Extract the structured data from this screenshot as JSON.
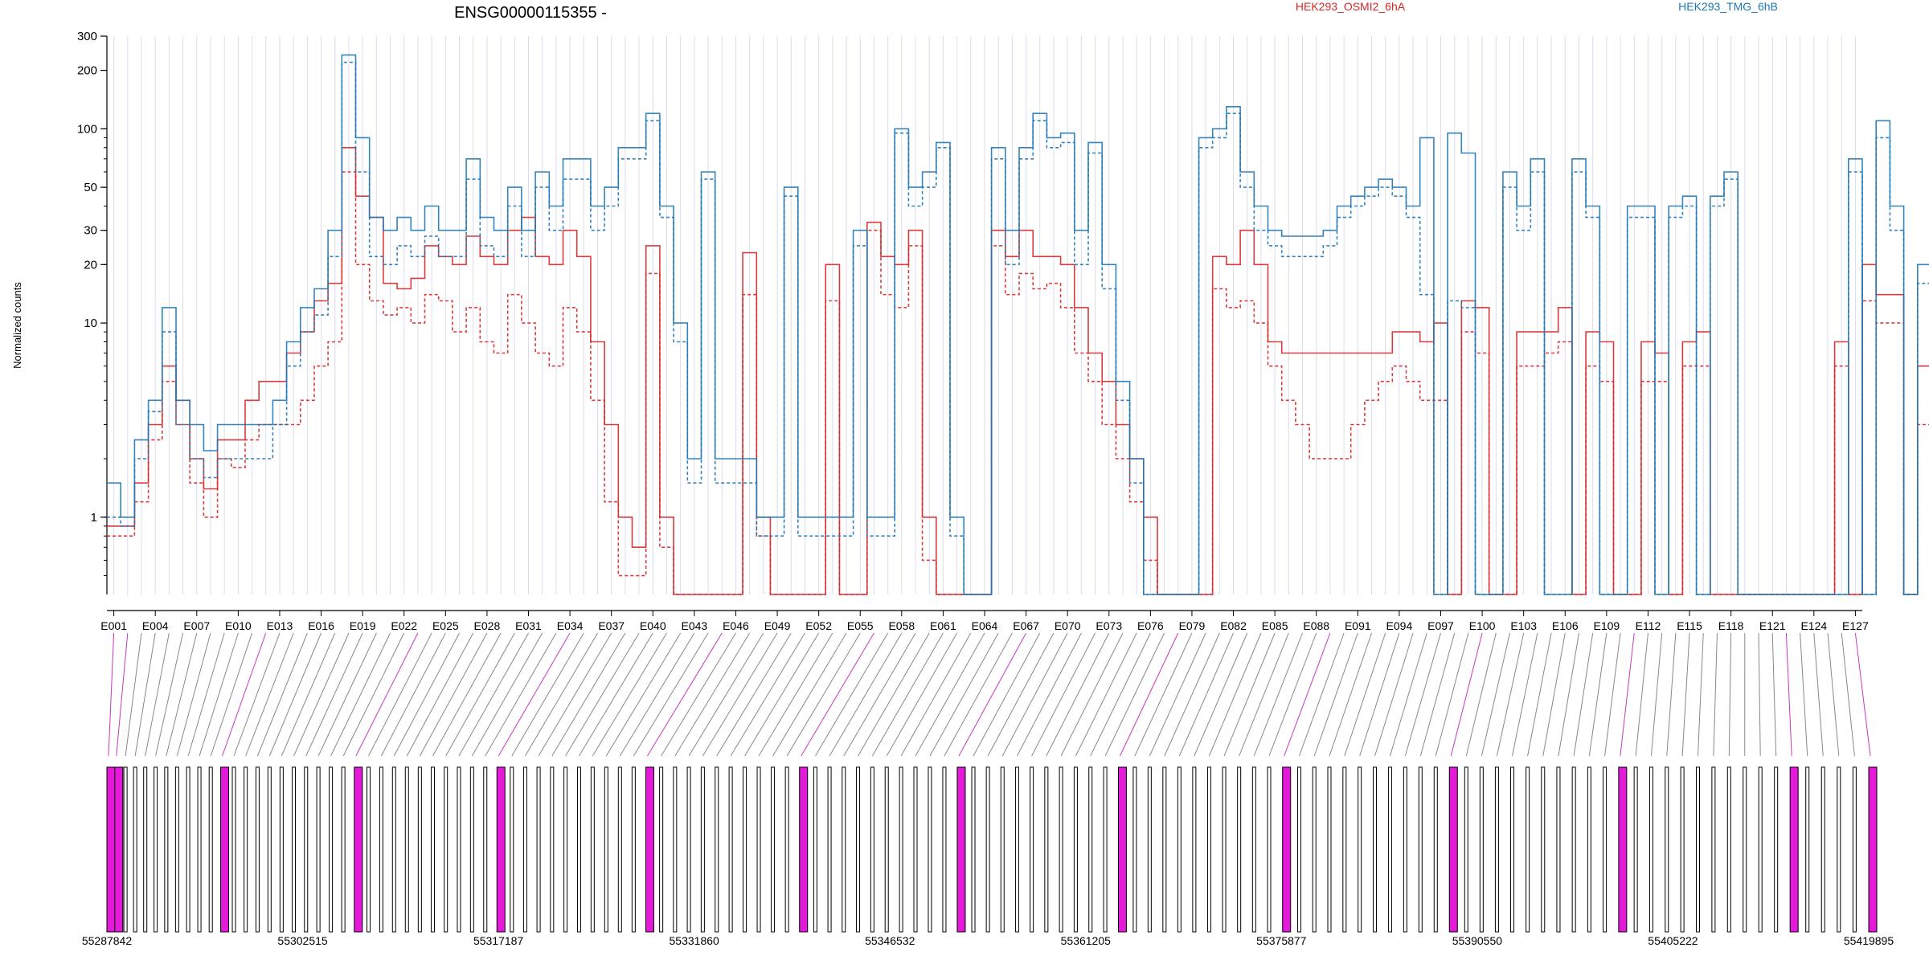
{
  "chart_data": {
    "type": "line",
    "title": "ENSG00000115355 -",
    "ylabel": "Normalized counts",
    "y_scale": "log",
    "ylim": [
      0.4,
      300
    ],
    "y_ticks": [
      1,
      10,
      20,
      30,
      50,
      100,
      200,
      300
    ],
    "legend_placement": "top",
    "exon_tick_labels": [
      "E001",
      "E004",
      "E007",
      "E010",
      "E013",
      "E016",
      "E019",
      "E022",
      "E025",
      "E028",
      "E031",
      "E034",
      "E037",
      "E040",
      "E043",
      "E046",
      "E049",
      "E052",
      "E055",
      "E058",
      "E061",
      "E064",
      "E067",
      "E070",
      "E073",
      "E076",
      "E079",
      "E082",
      "E085",
      "E088",
      "E091",
      "E094",
      "E097",
      "E100",
      "E103",
      "E106",
      "E109",
      "E112",
      "E115",
      "E118",
      "E121",
      "E124",
      "E127"
    ],
    "genomic_ticks": [
      "55287842",
      "55302515",
      "55317187",
      "55331860",
      "55346532",
      "55361205",
      "55375877",
      "55390550",
      "55405222",
      "55419895"
    ],
    "genomic_range": [
      55287842,
      55419895
    ],
    "exon_count": 127,
    "series": [
      {
        "name": "HEK293_OSMI2_6hA",
        "color": "#d62728",
        "values": [
          0.9,
          0.9,
          1.5,
          3,
          6,
          4,
          2,
          1.4,
          2.5,
          2.5,
          4,
          5,
          5,
          7,
          9,
          13,
          16,
          80,
          45,
          35,
          16,
          15,
          17,
          25,
          22,
          20,
          28,
          22,
          20,
          30,
          35,
          22,
          20,
          30,
          22,
          8,
          3,
          1,
          0.7,
          25,
          1,
          0.4,
          0.4,
          0.4,
          0.4,
          0.4,
          23,
          1,
          0.4,
          0.4,
          0.4,
          0.4,
          20,
          0.4,
          0.4,
          33,
          22,
          20,
          30,
          1,
          0.4,
          0.4,
          0.4,
          0.4,
          30,
          22,
          30,
          22,
          22,
          20,
          12,
          7,
          5,
          3,
          2,
          1,
          0.4,
          0.4,
          0.4,
          0.4,
          22,
          20,
          30,
          20,
          8,
          7,
          7,
          7,
          7,
          7,
          7,
          7,
          7,
          9,
          9,
          8,
          10,
          0.4,
          13,
          12,
          0.4,
          0.4,
          9,
          9,
          9,
          12,
          0.4,
          9,
          8,
          0.4,
          0.4,
          8,
          7,
          0.4,
          8,
          9,
          0.4,
          0.4,
          0.4,
          0.4,
          0.4,
          0.4,
          0.4,
          0.4,
          0.4,
          8,
          0.4,
          20,
          14,
          14,
          0.4,
          6
        ]
      },
      {
        "name": "HEK293_OSMI2_6hA",
        "color": "#d62728",
        "values": [
          0.8,
          0.8,
          1.2,
          2.5,
          5,
          3,
          1.5,
          1,
          2,
          1.8,
          2.5,
          3,
          3,
          3,
          4,
          6,
          8,
          60,
          20,
          13,
          11,
          12,
          10,
          14,
          13,
          9,
          12,
          8,
          7,
          14,
          10,
          7,
          6,
          12,
          9,
          4,
          1.2,
          0.5,
          0.5,
          18,
          0.7,
          0.4,
          0.4,
          0.4,
          0.4,
          0.4,
          14,
          0.8,
          0.4,
          0.4,
          0.4,
          0.4,
          13,
          0.4,
          0.4,
          30,
          14,
          12,
          25,
          0.6,
          0.4,
          0.4,
          0.4,
          0.4,
          25,
          14,
          18,
          15,
          16,
          12,
          7,
          5,
          3,
          2,
          1.2,
          0.6,
          0.4,
          0.4,
          0.4,
          0.4,
          15,
          12,
          13,
          10,
          6,
          4,
          3,
          2,
          2,
          2,
          3,
          4,
          5,
          6,
          5,
          4,
          4,
          0.4,
          9,
          7,
          0.4,
          0.4,
          6,
          6,
          7,
          8,
          0.4,
          6,
          5,
          0.4,
          0.4,
          5,
          5,
          0.4,
          6,
          6,
          0.4,
          0.4,
          0.4,
          0.4,
          0.4,
          0.4,
          0.4,
          0.4,
          0.4,
          6,
          0.4,
          13,
          10,
          10,
          0.4,
          3
        ]
      },
      {
        "name": "HEK293_TMG_6hB",
        "color": "#1f77b4",
        "values": [
          1.5,
          1,
          2.5,
          4,
          12,
          4,
          3,
          2.2,
          3,
          3,
          3,
          3,
          4,
          8,
          12,
          15,
          30,
          240,
          90,
          35,
          30,
          35,
          30,
          40,
          30,
          30,
          70,
          35,
          30,
          50,
          30,
          60,
          40,
          70,
          70,
          40,
          50,
          80,
          80,
          120,
          40,
          10,
          2,
          60,
          2,
          2,
          2,
          1,
          1,
          50,
          1,
          1,
          1,
          1,
          30,
          1,
          1,
          100,
          50,
          60,
          85,
          1,
          0.4,
          0.4,
          80,
          30,
          80,
          120,
          90,
          95,
          30,
          85,
          20,
          5,
          2,
          0.4,
          0.4,
          0.4,
          0.4,
          90,
          100,
          130,
          60,
          40,
          30,
          28,
          28,
          28,
          30,
          40,
          45,
          50,
          55,
          50,
          40,
          90,
          0.4,
          95,
          75,
          0.4,
          0.4,
          60,
          40,
          70,
          0.4,
          0.4,
          70,
          40,
          0.4,
          0.4,
          40,
          40,
          0.4,
          40,
          45,
          0.4,
          45,
          60,
          0.4,
          0.4,
          0.4,
          0.4,
          0.4,
          0.4,
          0.4,
          0.4,
          70,
          0.4,
          110,
          40,
          0.4,
          20
        ]
      },
      {
        "name": "HEK293_TMG_6hB",
        "color": "#1f77b4",
        "values": [
          1,
          0.9,
          2,
          3.5,
          9,
          3,
          2,
          1.6,
          2,
          2,
          2,
          2,
          3,
          6,
          9,
          11,
          22,
          220,
          60,
          22,
          20,
          25,
          22,
          28,
          22,
          22,
          55,
          25,
          22,
          40,
          22,
          50,
          30,
          55,
          55,
          30,
          40,
          70,
          70,
          110,
          35,
          8,
          1.5,
          55,
          1.5,
          1.5,
          1.5,
          0.8,
          0.8,
          45,
          0.8,
          0.8,
          0.8,
          0.8,
          25,
          0.8,
          0.8,
          95,
          40,
          50,
          80,
          0.8,
          0.4,
          0.4,
          70,
          20,
          70,
          110,
          80,
          85,
          20,
          75,
          15,
          4,
          1.5,
          0.4,
          0.4,
          0.4,
          0.4,
          80,
          90,
          120,
          50,
          30,
          25,
          22,
          22,
          22,
          25,
          35,
          40,
          45,
          50,
          45,
          35,
          14,
          0.4,
          13,
          12,
          0.4,
          0.4,
          50,
          30,
          60,
          0.4,
          0.4,
          60,
          35,
          0.4,
          0.4,
          35,
          35,
          0.4,
          35,
          40,
          0.4,
          40,
          55,
          0.4,
          0.4,
          0.4,
          0.4,
          0.4,
          0.4,
          0.4,
          0.4,
          60,
          0.4,
          90,
          30,
          0.4,
          16
        ]
      }
    ]
  }
}
